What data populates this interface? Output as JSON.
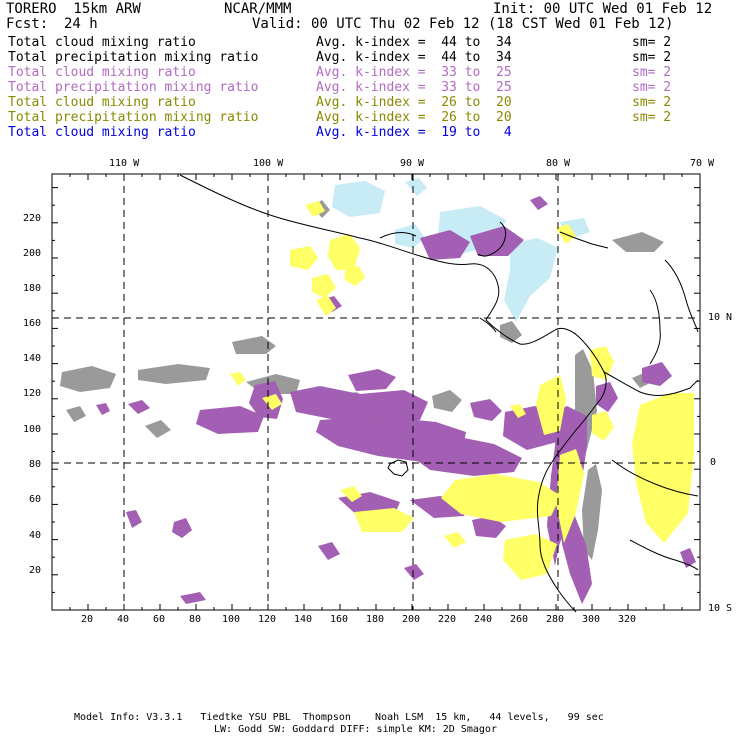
{
  "header": {
    "model": "TORERO  15km ARW",
    "org": "NCAR/MMM",
    "init": "Init: 00 UTC Wed 01 Feb 12",
    "fcst_label": "Fcst:",
    "fcst_value": "24 h",
    "valid": "Valid: 00 UTC Thu 02 Feb 12 (18 CST Wed 01 Feb 12)"
  },
  "legend": [
    {
      "field": "Total cloud mixing ratio",
      "range": "Avg. k-index =  44 to  34",
      "sm": "sm= 2",
      "color": "#000000"
    },
    {
      "field": "Total precipitation mixing ratio",
      "range": "Avg. k-index =  44 to  34",
      "sm": "sm= 2",
      "color": "#000000"
    },
    {
      "field": "Total cloud mixing ratio",
      "range": "Avg. k-index =  33 to  25",
      "sm": "sm= 2",
      "color": "#b36bc2"
    },
    {
      "field": "Total precipitation mixing ratio",
      "range": "Avg. k-index =  33 to  25",
      "sm": "sm= 2",
      "color": "#b36bc2"
    },
    {
      "field": "Total cloud mixing ratio",
      "range": "Avg. k-index =  26 to  20",
      "sm": "sm= 2",
      "color": "#8a8a00"
    },
    {
      "field": "Total precipitation mixing ratio",
      "range": "Avg. k-index =  26 to  20",
      "sm": "sm= 2",
      "color": "#8a8a00"
    },
    {
      "field": "Total cloud mixing ratio",
      "range": "Avg. k-index =  19 to   4",
      "sm": "",
      "color": "#0000dd"
    }
  ],
  "map": {
    "lon_labels": [
      "110 W",
      "100 W",
      "90 W",
      "80 W",
      "70 W"
    ],
    "lat_labels": [
      "10 N",
      "0",
      "10 S"
    ],
    "x_ticks": [
      "20",
      "40",
      "60",
      "80",
      "100",
      "120",
      "140",
      "160",
      "180",
      "200",
      "220",
      "240",
      "260",
      "280",
      "300",
      "320"
    ],
    "y_ticks": [
      "20",
      "40",
      "60",
      "80",
      "100",
      "120",
      "140",
      "160",
      "180",
      "200",
      "220"
    ],
    "colors": {
      "gray": "#9a9a9a",
      "purple": "#a25fb3",
      "yellow": "#ffff66",
      "lightblue": "#c8ecf6",
      "coast": "#000000"
    }
  },
  "footer": {
    "line1": "Model Info: V3.3.1   Tiedtke YSU PBL  Thompson    Noah LSM  15 km,   44 levels,   99 sec",
    "line2": "LW: Godd SW: Goddard DIFF: simple KM: 2D Smagor"
  }
}
